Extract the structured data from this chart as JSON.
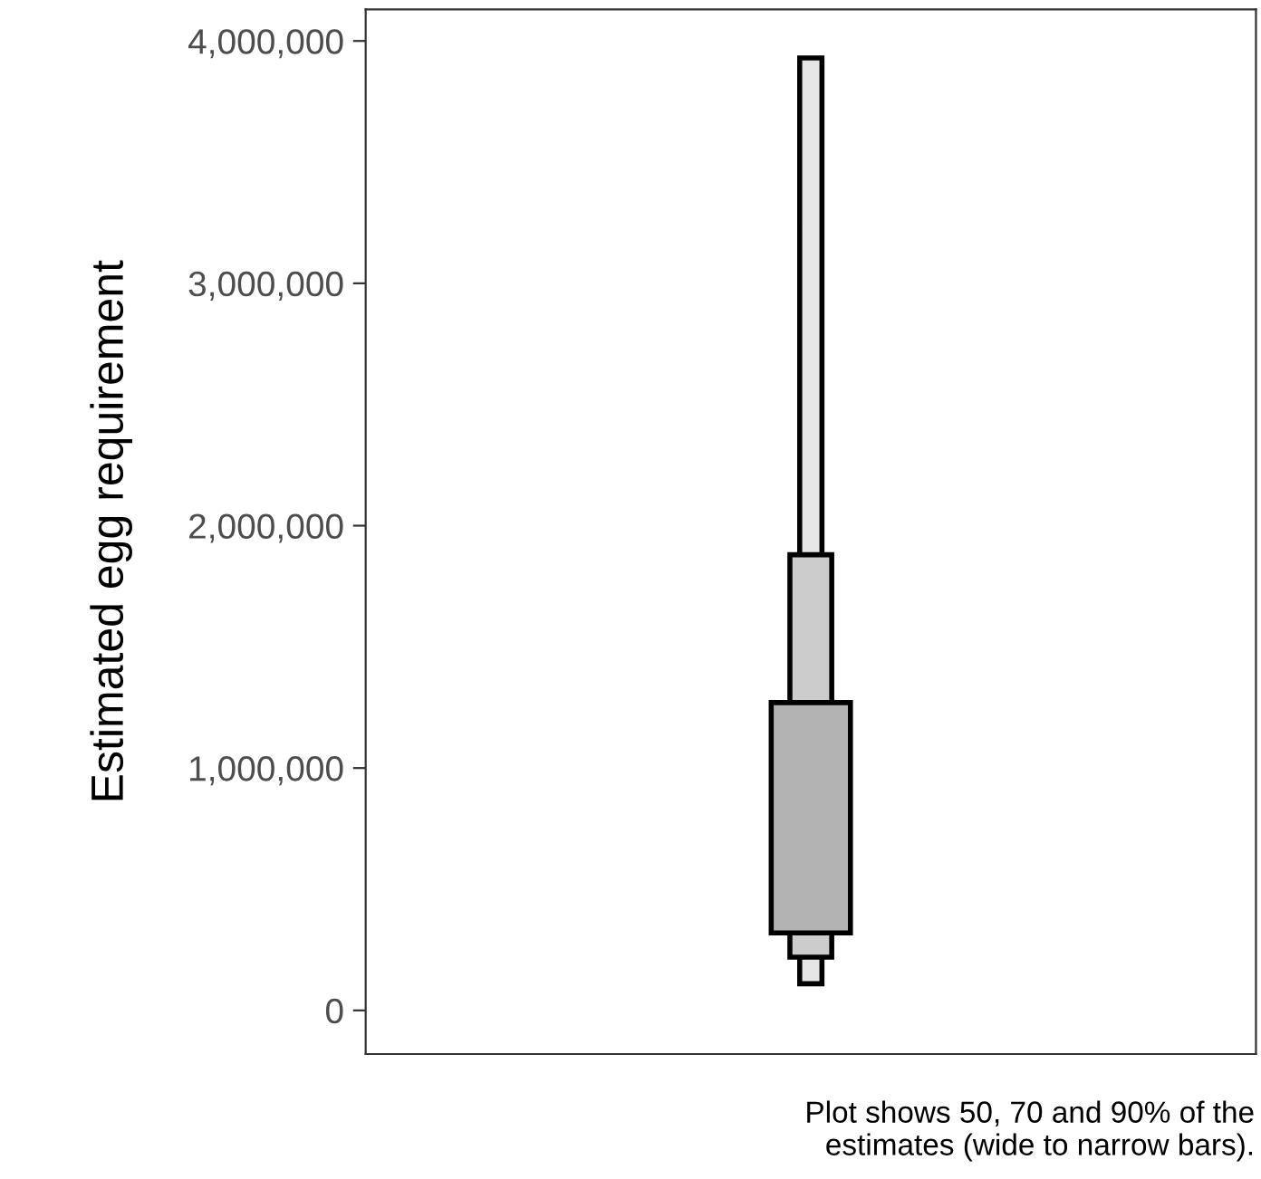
{
  "chart_data": {
    "type": "bar",
    "ylabel": "Estimated egg requirement",
    "categories": [
      null
    ],
    "series": [
      {
        "color": "#e6e6e6",
        "base": [
          110000
        ],
        "values": [
          3820000
        ]
      },
      {
        "color": "#cccccc",
        "base": [
          220000
        ],
        "values": [
          1660000
        ]
      },
      {
        "color": "#b3b3b3",
        "base": [
          320000
        ],
        "values": [
          950000
        ]
      }
    ],
    "ylim": [
      -180000,
      4130000
    ],
    "yticks": [
      {
        "value": 0,
        "label": "0"
      },
      {
        "value": 1000000,
        "label": "1,000,000"
      },
      {
        "value": 2000000,
        "label": "2,000,000"
      },
      {
        "value": 3000000,
        "label": "3,000,000"
      },
      {
        "value": 4000000,
        "label": "4,000,000"
      }
    ],
    "grid": false,
    "annotations": [
      "Plot shows 50, 70 and 90% of the\nestimates (wide to narrow bars)."
    ]
  }
}
